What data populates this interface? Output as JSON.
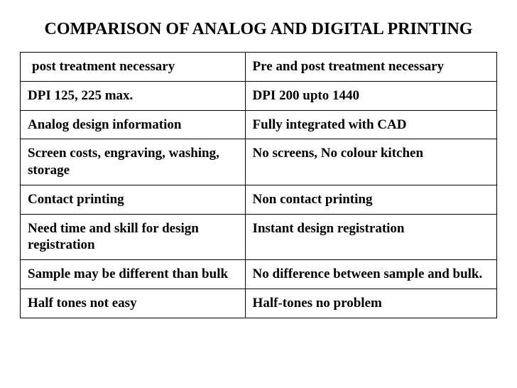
{
  "title": "COMPARISON OF ANALOG AND DIGITAL PRINTING",
  "table": {
    "rows": [
      {
        "left": " post treatment necessary",
        "right": "Pre and post treatment necessary"
      },
      {
        "left": "DPI 125, 225 max.",
        "right": "DPI 200 upto 1440"
      },
      {
        "left": "Analog design information",
        "right": "Fully integrated with CAD"
      },
      {
        "left": "Screen costs, engraving, washing, storage",
        "right": "No screens, No colour kitchen"
      },
      {
        "left": "Contact printing",
        "right": "Non contact printing"
      },
      {
        "left": "Need time and skill for  design registration",
        "right": "Instant design registration"
      },
      {
        "left": "Sample may be different than bulk",
        "right": "No difference between sample and bulk."
      },
      {
        "left": "Half tones not easy",
        "right": "Half-tones no problem"
      }
    ]
  },
  "style": {
    "background_color": "#ffffff",
    "text_color": "#000000",
    "border_color": "#000000",
    "font_family": "Times New Roman",
    "title_fontsize": 24,
    "cell_fontsize": 19,
    "title_weight": "bold",
    "cell_weight": "bold",
    "col_widths_pct": [
      47,
      53
    ]
  }
}
